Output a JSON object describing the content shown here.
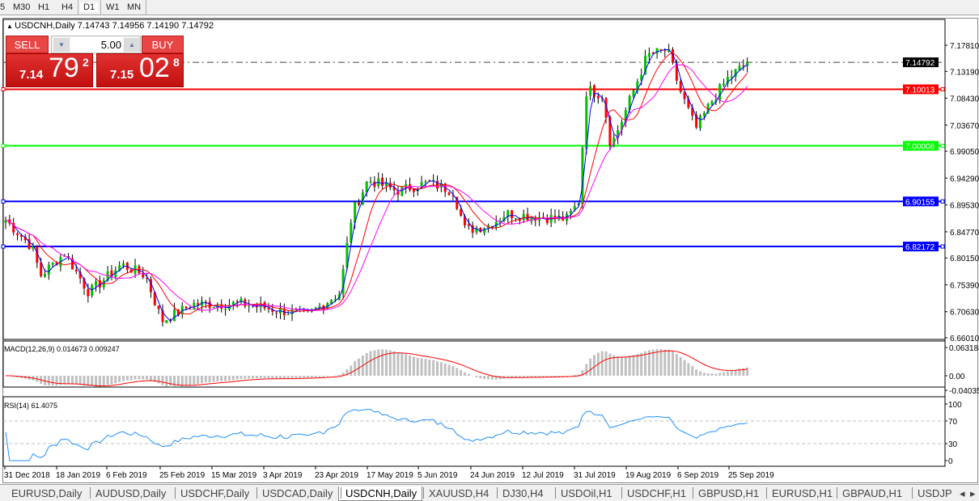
{
  "timeframes": [
    "5",
    "M30",
    "H1",
    "H4",
    "D1",
    "W1",
    "MN"
  ],
  "active_timeframe": "D1",
  "chart": {
    "symbol_title": "USDCNH,Daily  7.14743 7.14956 7.14190 7.14792",
    "price_axis": [
      "7.17810",
      "7.13190",
      "7.08430",
      "7.03670",
      "6.99050",
      "6.94290",
      "6.89530",
      "6.84770",
      "6.80150",
      "6.75390",
      "6.70630",
      "6.66010"
    ],
    "current_price": "7.14792",
    "levels": [
      {
        "value": "7.10013",
        "color": "#ff0000"
      },
      {
        "value": "7.00006",
        "color": "#00ff00"
      },
      {
        "value": "6.90155",
        "color": "#0000ff"
      },
      {
        "value": "6.82172",
        "color": "#0000ff"
      }
    ],
    "dates": [
      "31 Dec 2018",
      "18 Jan 2019",
      "6 Feb 2019",
      "25 Feb 2019",
      "15 Mar 2019",
      "3 Apr 2019",
      "23 Apr 2019",
      "17 May 2019",
      "5 Jun 2019",
      "24 Jun 2019",
      "12 Jul 2019",
      "31 Jul 2019",
      "19 Aug 2019",
      "6 Sep 2019",
      "25 Sep 2019"
    ],
    "bull_color": "#00c000",
    "bear_color": "#ff0000",
    "ma_colors": [
      "#0000ff",
      "#ff0000",
      "#ff00ff"
    ]
  },
  "trade": {
    "sell_label": "SELL",
    "buy_label": "BUY",
    "lot": "5.00",
    "sell": {
      "big": "7.14",
      "main": "79",
      "sup": "2"
    },
    "buy": {
      "big": "7.15",
      "main": "02",
      "sup": "8"
    }
  },
  "macd": {
    "label": "MACD(12,26,9) 0.014673 0.009247",
    "axis": [
      "0.063184",
      "0.00",
      "-0.040355"
    ]
  },
  "rsi": {
    "label": "RSI(14) 61.4075",
    "axis": [
      "100",
      "70",
      "30",
      "0"
    ]
  },
  "tabs": [
    "EURUSD,Daily",
    "AUDUSD,Daily",
    "USDCHF,Daily",
    "USDCAD,Daily",
    "USDCNH,Daily",
    "XAUUSD,H4",
    "DJ30,H4",
    "USDOil,H1",
    "USDCHF,H1",
    "GBPUSD,H1",
    "EURUSD,H1",
    "GBPAUD,H1",
    "USDJP"
  ],
  "active_tab": "USDCNH,Daily"
}
